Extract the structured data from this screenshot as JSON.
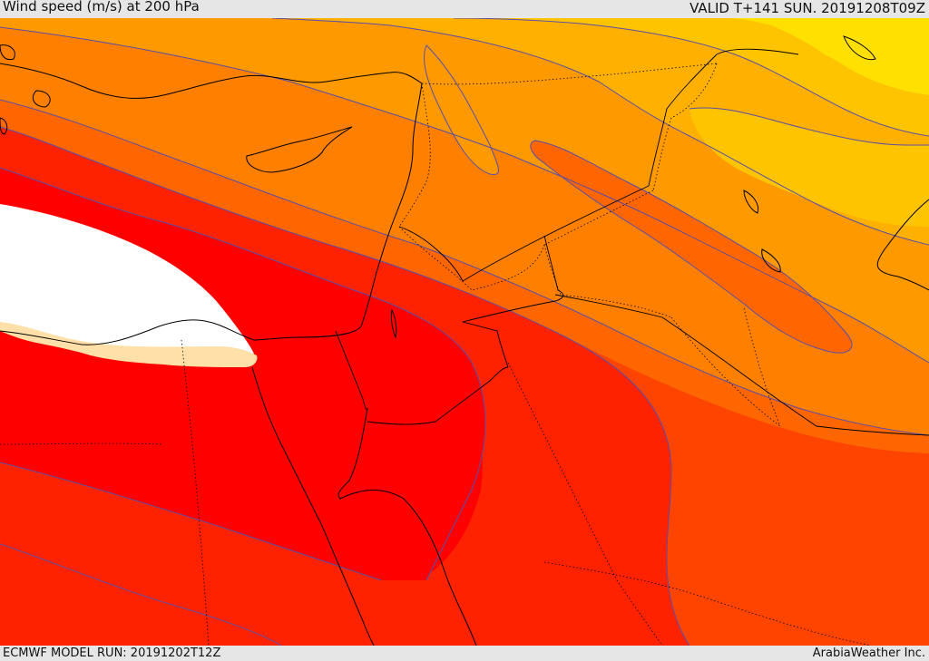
{
  "header": {
    "title": "Wind speed (m/s) at 200 hPa",
    "valid": "VALID T+141 SUN. 20191208T09Z"
  },
  "footer": {
    "model_run": "ECMWF MODEL RUN: 20191202T12Z",
    "credit": "ArabiaWeather Inc."
  },
  "colors": {
    "below_threshold": "#ffffff",
    "band_1": "#ffe0a8",
    "band_core": "#ff0000",
    "band_2": "#ff2200",
    "band_3": "#ff4400",
    "band_4": "#ff6600",
    "band_5": "#ff8000",
    "band_6": "#ff9900",
    "band_7": "#ffb000",
    "band_8": "#ffc400",
    "band_max": "#ffe000",
    "contour_line": "#5a4ea8",
    "coastline": "#000000",
    "border": "#000000"
  }
}
